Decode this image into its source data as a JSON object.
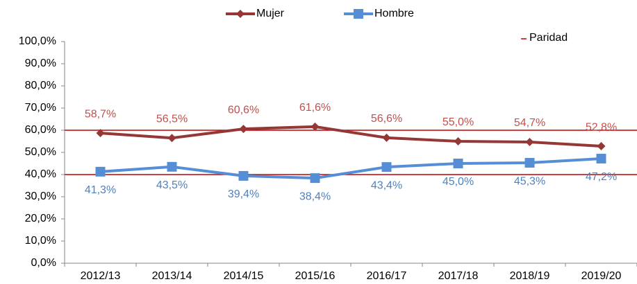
{
  "chart_data": {
    "type": "line",
    "categories": [
      "2012/13",
      "2013/14",
      "2014/15",
      "2015/16",
      "2016/17",
      "2017/18",
      "2018/19",
      "2019/20"
    ],
    "series": [
      {
        "name": "Mujer",
        "color": "#953735",
        "label_color": "#c0504d",
        "marker": "diamond",
        "values": [
          58.7,
          56.5,
          60.6,
          61.6,
          56.6,
          55.0,
          54.7,
          52.8
        ],
        "value_labels": [
          "58,7%",
          "56,5%",
          "60,6%",
          "61,6%",
          "56,6%",
          "55,0%",
          "54,7%",
          "52,8%"
        ]
      },
      {
        "name": "Hombre",
        "color": "#558ed5",
        "label_color": "#4f81bd",
        "marker": "square",
        "values": [
          41.3,
          43.5,
          39.4,
          38.4,
          43.4,
          45.0,
          45.3,
          47.2
        ],
        "value_labels": [
          "41,3%",
          "43,5%",
          "39,4%",
          "38,4%",
          "43,4%",
          "45,0%",
          "45,3%",
          "47,2%"
        ]
      }
    ],
    "parity": {
      "name": "Paridad",
      "color": "#c00000",
      "values": [
        40,
        60
      ]
    },
    "ylim": [
      0,
      100
    ],
    "yticks": [
      {
        "value": 0,
        "label": "0,0%"
      },
      {
        "value": 10,
        "label": "10,0%"
      },
      {
        "value": 20,
        "label": "20,0%"
      },
      {
        "value": 30,
        "label": "30,0%"
      },
      {
        "value": 40,
        "label": "40,0%"
      },
      {
        "value": 50,
        "label": "50,0%"
      },
      {
        "value": 60,
        "label": "60,0%"
      },
      {
        "value": 70,
        "label": "70,0%"
      },
      {
        "value": 80,
        "label": "80,0%"
      },
      {
        "value": 90,
        "label": "90,0%"
      },
      {
        "value": 100,
        "label": "100,0%"
      }
    ],
    "grid": false
  }
}
